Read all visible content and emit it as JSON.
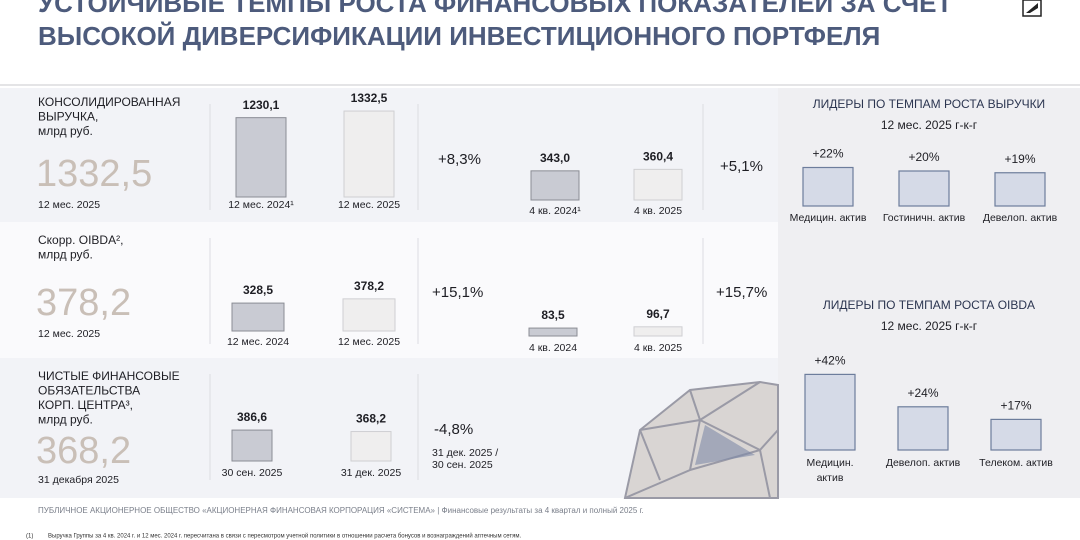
{
  "title": [
    "УСТОЙЧИВЫЕ ТЕМПЫ РОСТА ФИНАНСОВЫХ ПОКАЗАТЕЛЕЙ ЗА СЧЕТ",
    "ВЫСОКОЙ ДИВЕРСИФИКАЦИИ ИНВЕСТИЦИОННОГО ПОРТФЕЛЯ"
  ],
  "rows": [
    {
      "label": [
        "КОНСОЛИДИРОВАННАЯ",
        "ВЫРУЧКА,",
        "млрд руб."
      ],
      "total": "1332,5",
      "period": "12 мес. 2025",
      "groups": [
        {
          "values": [
            1230.1,
            1332.5
          ],
          "value_labels": [
            "1230,1",
            "1332,5"
          ],
          "categories": [
            "12 мес. 2024¹",
            "12 мес. 2025"
          ],
          "change": "+8,3%"
        },
        {
          "values": [
            343.0,
            360.4
          ],
          "value_labels": [
            "343,0",
            "360,4"
          ],
          "categories": [
            "4 кв. 2024¹",
            "4 кв. 2025"
          ],
          "change": "+5,1%"
        }
      ]
    },
    {
      "label": [
        "Скорр. OIBDA²,",
        "млрд руб."
      ],
      "total": "378,2",
      "period": "12 мес. 2025",
      "groups": [
        {
          "values": [
            328.5,
            378.2
          ],
          "value_labels": [
            "328,5",
            "378,2"
          ],
          "categories": [
            "12 мес. 2024",
            "12 мес. 2025"
          ],
          "change": "+15,1%"
        },
        {
          "values": [
            83.5,
            96.7
          ],
          "value_labels": [
            "83,5",
            "96,7"
          ],
          "categories": [
            "4 кв. 2024",
            "4 кв. 2025"
          ],
          "change": "+15,7%"
        }
      ]
    },
    {
      "label": [
        "ЧИСТЫЕ ФИНАНСОВЫЕ",
        "ОБЯЗАТЕЛЬСТВА",
        "КОРП. ЦЕНТРА³,",
        "млрд руб."
      ],
      "total": "368,2",
      "period": "31 декабря 2025",
      "groups": [
        {
          "values": [
            386.6,
            368.2
          ],
          "value_labels": [
            "386,6",
            "368,2"
          ],
          "categories": [
            "30 сен. 2025",
            "31 дек. 2025"
          ],
          "change": "-4,8%",
          "change_note": [
            "31 дек. 2025 /",
            "30 сен. 2025"
          ]
        }
      ]
    }
  ],
  "leaders": [
    {
      "title": "ЛИДЕРЫ ПО ТЕМПАМ РОСТА ВЫРУЧКИ",
      "subtitle": "12 мес. 2025 г-к-г",
      "categories": [
        "Медицин. актив",
        "Гостиничн. актив",
        "Девелоп. актив"
      ],
      "values": [
        22,
        20,
        19
      ],
      "value_labels": [
        "+22%",
        "+20%",
        "+19%"
      ]
    },
    {
      "title": "ЛИДЕРЫ ПО ТЕМПАМ РОСТА OIBDA",
      "subtitle": "12 мес. 2025 г-к-г",
      "categories": [
        [
          "Медицин.",
          "актив"
        ],
        "Девелоп. актив",
        "Телеком. актив"
      ],
      "values": [
        42,
        24,
        17
      ],
      "value_labels": [
        "+42%",
        "+24%",
        "+17%"
      ]
    }
  ],
  "footer": "ПУБЛИЧНОЕ АКЦИОНЕРНОЕ ОБЩЕСТВО «АКЦИОНЕРНАЯ ФИНАНСОВАЯ КОРПОРАЦИЯ «СИСТЕМА» | Финансовые результаты за 4 квартал и полный 2025 г.",
  "footnote": {
    "marker": "(1)",
    "text": "Выручка Группы за 4 кв. 2024 г. и 12 мес. 2024 г. пересчитана в связи с пересмотром учетной политики в отношении расчета бонусов и вознаграждений аптечным сетям."
  }
}
